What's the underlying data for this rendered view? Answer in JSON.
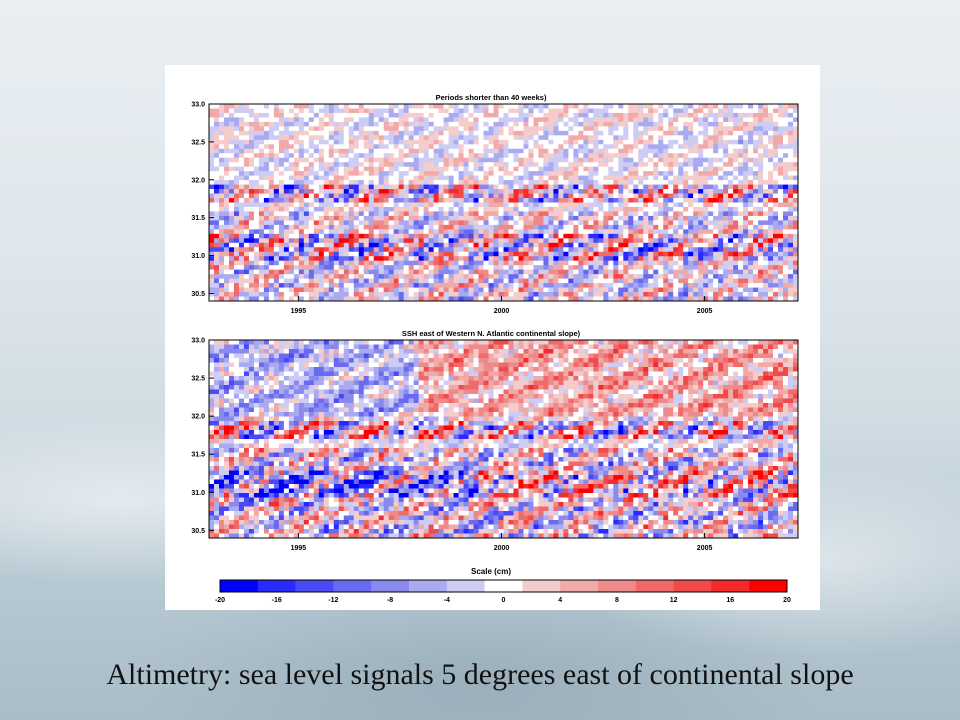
{
  "slide": {
    "caption": "Altimetry: sea level signals 5 degrees east of continental slope"
  },
  "chart_data": [
    {
      "type": "heatmap",
      "title": "Periods shorter than 40 weeks)",
      "xlabel": "",
      "ylabel": "",
      "x_ticks": [
        "1995",
        "2000",
        "2005"
      ],
      "x_range": [
        1992.8,
        2007.3
      ],
      "y_ticks": [
        "33.0",
        "32.5",
        "32.0",
        "31.5",
        "31.0",
        "30.5"
      ],
      "y_range": [
        30.4,
        33.0
      ],
      "value_range_cm": [
        -20,
        20
      ],
      "description_bands": [
        {
          "y_from": 31.95,
          "y_to": 31.72,
          "amplitude": 0.9
        },
        {
          "y_from": 31.3,
          "y_to": 30.95,
          "amplitude": 1.0
        },
        {
          "y_from": 31.6,
          "y_to": 31.3,
          "amplitude": 0.55
        },
        {
          "y_from": 30.95,
          "y_to": 30.4,
          "amplitude": 0.6
        },
        {
          "y_from": 33.0,
          "y_to": 31.95,
          "amplitude": 0.3
        }
      ]
    },
    {
      "type": "heatmap",
      "title": "SSH east of Western N. Atlantic continental slope)",
      "xlabel": "",
      "ylabel": "",
      "x_ticks": [
        "1995",
        "2000",
        "2005"
      ],
      "x_range": [
        1992.8,
        2007.3
      ],
      "y_ticks": [
        "33.0",
        "32.5",
        "32.0",
        "31.5",
        "31.0",
        "30.5"
      ],
      "y_range": [
        30.4,
        33.0
      ],
      "value_range_cm": [
        -20,
        20
      ],
      "description_bands": [
        {
          "y_from": 31.95,
          "y_to": 31.72,
          "amplitude": 1.0
        },
        {
          "y_from": 31.3,
          "y_to": 30.95,
          "amplitude": 1.0
        },
        {
          "y_from": 31.6,
          "y_to": 31.3,
          "amplitude": 0.7
        },
        {
          "y_from": 30.95,
          "y_to": 30.4,
          "amplitude": 0.75
        },
        {
          "y_from": 33.0,
          "y_to": 31.95,
          "amplitude": 0.45
        }
      ]
    }
  ],
  "colorbar": {
    "title": "Scale (cm)",
    "tick_labels": [
      "-20",
      "-16",
      "-12",
      "-8",
      "-4",
      "0",
      "4",
      "8",
      "12",
      "16",
      "20"
    ],
    "colors": [
      "#0000ff",
      "#2a2aff",
      "#4a4af5",
      "#6a6af0",
      "#8a8aee",
      "#aaaaf0",
      "#ccccf5",
      "#ffffff",
      "#f5cccc",
      "#f0aaaa",
      "#ee8a8a",
      "#f06a6a",
      "#f04a4a",
      "#f52a2a",
      "#ff0000"
    ]
  }
}
